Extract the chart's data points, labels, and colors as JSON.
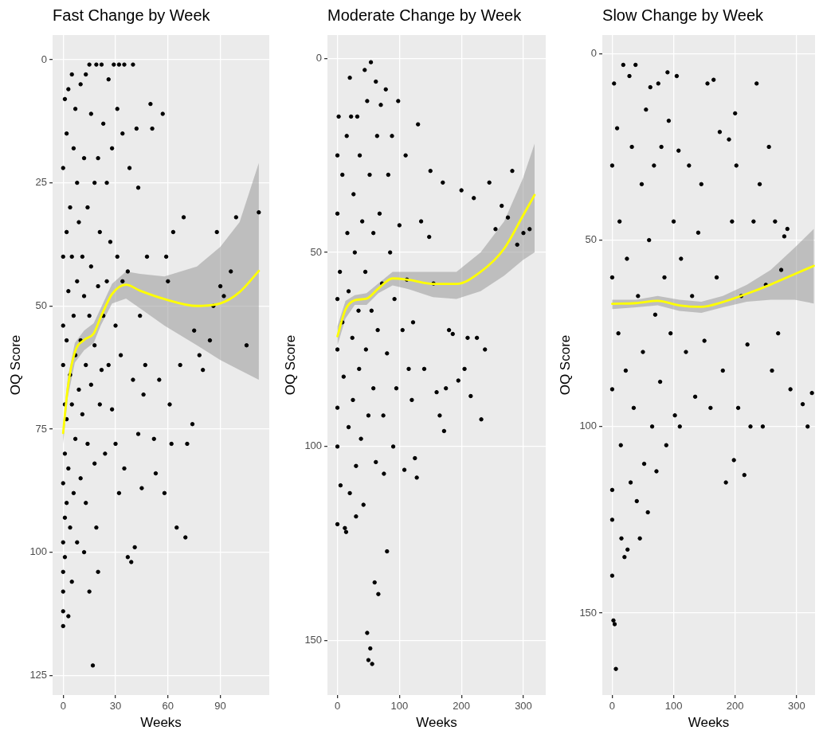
{
  "chart_data": [
    {
      "type": "scatter",
      "title": "Fast Change by Week",
      "xlabel": "Weeks",
      "ylabel": "OQ Score",
      "xlim": [
        -6,
        118
      ],
      "xticks": [
        0,
        30,
        60,
        90
      ],
      "ylim": [
        129,
        -5
      ],
      "yticks": [
        0,
        25,
        50,
        75,
        100,
        125
      ],
      "grid": true,
      "series": [
        {
          "type": "scatter",
          "color": "#000000",
          "x": [
            0,
            0,
            0,
            0,
            0,
            0,
            0,
            0,
            0,
            0,
            1,
            1,
            1,
            1,
            1,
            2,
            2,
            2,
            2,
            2,
            3,
            3,
            3,
            3,
            4,
            4,
            4,
            5,
            5,
            5,
            5,
            6,
            6,
            6,
            7,
            7,
            7,
            8,
            8,
            8,
            9,
            9,
            10,
            10,
            10,
            11,
            11,
            12,
            12,
            12,
            13,
            13,
            13,
            14,
            14,
            15,
            15,
            15,
            16,
            16,
            16,
            17,
            18,
            18,
            18,
            19,
            19,
            20,
            20,
            20,
            21,
            21,
            22,
            22,
            23,
            23,
            24,
            25,
            25,
            26,
            26,
            27,
            28,
            28,
            29,
            30,
            30,
            31,
            31,
            32,
            32,
            33,
            34,
            34,
            35,
            35,
            37,
            37,
            38,
            39,
            40,
            40,
            41,
            42,
            43,
            43,
            44,
            45,
            46,
            47,
            48,
            50,
            51,
            52,
            53,
            55,
            57,
            58,
            59,
            60,
            61,
            62,
            63,
            65,
            67,
            69,
            70,
            71,
            74,
            75,
            78,
            80,
            84,
            86,
            88,
            90,
            92,
            96,
            99,
            105,
            112
          ],
          "values": [
            115,
            112,
            108,
            104,
            98,
            86,
            62,
            54,
            40,
            22,
            8,
            101,
            93,
            80,
            70,
            15,
            35,
            57,
            73,
            90,
            113,
            6,
            47,
            83,
            30,
            64,
            95,
            3,
            40,
            70,
            106,
            18,
            52,
            88,
            10,
            60,
            77,
            25,
            45,
            98,
            33,
            67,
            5,
            57,
            85,
            40,
            72,
            20,
            48,
            100,
            3,
            62,
            90,
            30,
            78,
            1,
            52,
            108,
            11,
            42,
            66,
            123,
            25,
            58,
            82,
            1,
            95,
            20,
            46,
            104,
            35,
            70,
            1,
            63,
            13,
            52,
            80,
            25,
            45,
            4,
            62,
            37,
            71,
            18,
            1,
            54,
            78,
            10,
            40,
            1,
            88,
            60,
            15,
            45,
            1,
            83,
            43,
            101,
            22,
            102,
            1,
            65,
            99,
            14,
            26,
            76,
            52,
            87,
            68,
            62,
            40,
            9,
            14,
            77,
            84,
            65,
            11,
            88,
            40,
            45,
            70,
            78,
            35,
            95,
            62,
            32,
            97,
            78,
            74,
            55,
            60,
            63,
            57,
            50,
            35,
            46,
            48,
            43,
            32,
            58,
            31
          ]
        },
        {
          "type": "line",
          "color": "#ffff00",
          "x": [
            0,
            2.7,
            6.7,
            12,
            17.5,
            21.5,
            28,
            36,
            44,
            58,
            76.6,
            90,
            101,
            112
          ],
          "values": [
            75.8,
            66.5,
            59.4,
            56.9,
            55.6,
            52.3,
            47.6,
            45.7,
            46.9,
            48.6,
            50,
            49.5,
            47.2,
            42.9
          ],
          "lower": [
            74,
            64.5,
            57.5,
            55,
            53.5,
            50.5,
            45.5,
            43,
            43.5,
            44,
            42,
            38,
            33,
            21
          ],
          "upper": [
            78,
            68.5,
            61.5,
            59,
            57.5,
            54,
            49.5,
            48.5,
            50.5,
            54,
            58,
            61,
            63,
            65
          ]
        }
      ]
    },
    {
      "type": "scatter",
      "title": "Moderate Change by Week",
      "xlabel": "Weeks",
      "ylabel": "OQ Score",
      "xlim": [
        -16,
        336
      ],
      "xticks": [
        0,
        100,
        200,
        300
      ],
      "ylim": [
        164,
        -6
      ],
      "yticks": [
        0,
        50,
        100,
        150
      ],
      "grid": true,
      "series": [
        {
          "type": "scatter",
          "color": "#000000",
          "x": [
            0,
            0,
            0,
            0,
            0,
            0,
            0,
            2,
            4,
            5,
            8,
            8,
            10,
            12,
            14,
            15,
            16,
            18,
            18,
            20,
            20,
            22,
            24,
            25,
            26,
            28,
            30,
            30,
            32,
            34,
            35,
            36,
            38,
            40,
            42,
            44,
            45,
            46,
            48,
            48,
            50,
            50,
            52,
            53,
            54,
            55,
            56,
            58,
            58,
            60,
            62,
            62,
            64,
            65,
            66,
            68,
            70,
            72,
            74,
            75,
            78,
            80,
            80,
            82,
            85,
            88,
            90,
            92,
            95,
            98,
            100,
            105,
            108,
            110,
            112,
            115,
            120,
            122,
            125,
            128,
            130,
            135,
            140,
            148,
            150,
            155,
            160,
            165,
            170,
            172,
            175,
            180,
            186,
            195,
            200,
            205,
            210,
            215,
            220,
            225,
            232,
            238,
            245,
            255,
            265,
            275,
            282,
            290,
            300,
            310
          ],
          "values": [
            25,
            40,
            62,
            75,
            90,
            100,
            120,
            15,
            55,
            110,
            30,
            68,
            82,
            121,
            122,
            20,
            45,
            60,
            95,
            5,
            112,
            15,
            72,
            88,
            35,
            50,
            118,
            105,
            15,
            65,
            80,
            25,
            98,
            42,
            115,
            3,
            55,
            75,
            11,
            148,
            92,
            155,
            30,
            152,
            1,
            65,
            156,
            45,
            85,
            135,
            104,
            6,
            20,
            70,
            138,
            40,
            12,
            58,
            92,
            107,
            8,
            127,
            76,
            30,
            50,
            20,
            100,
            62,
            85,
            11,
            43,
            70,
            106,
            25,
            57,
            80,
            88,
            68,
            103,
            108,
            17,
            42,
            80,
            46,
            29,
            58,
            86,
            92,
            32,
            96,
            85,
            70,
            71,
            83,
            34,
            80,
            72,
            87,
            36,
            72,
            93,
            75,
            32,
            44,
            38,
            41,
            29,
            48,
            45,
            44
          ]
        },
        {
          "type": "line",
          "color": "#ffff00",
          "x": [
            0,
            13,
            28,
            47,
            66,
            89,
            116,
            154,
            192,
            231,
            269,
            299,
            318
          ],
          "values": [
            71.6,
            64.7,
            62.3,
            61.9,
            59.3,
            56.7,
            57.1,
            58.1,
            58.1,
            55,
            49,
            40.6,
            35.2
          ],
          "lower": [
            69,
            62.5,
            61,
            60.5,
            58,
            55,
            55,
            55,
            55,
            50,
            42,
            31,
            22
          ],
          "upper": [
            74,
            67,
            63.5,
            63.5,
            60.5,
            58.5,
            59.5,
            61.5,
            62,
            60,
            56,
            52,
            50
          ]
        }
      ]
    },
    {
      "type": "scatter",
      "title": "Slow Change by Week",
      "xlabel": "Weeks",
      "ylabel": "OQ Score",
      "xlim": [
        -16,
        330
      ],
      "xticks": [
        0,
        100,
        200,
        300
      ],
      "ylim": [
        172,
        -5
      ],
      "yticks": [
        0,
        50,
        100,
        150
      ],
      "grid": true,
      "series": [
        {
          "type": "scatter",
          "color": "#000000",
          "x": [
            0,
            0,
            0,
            0,
            0,
            0,
            2,
            4,
            6,
            3,
            8,
            10,
            12,
            14,
            15,
            18,
            20,
            22,
            24,
            25,
            28,
            30,
            32,
            35,
            38,
            40,
            42,
            45,
            48,
            50,
            52,
            55,
            58,
            60,
            62,
            65,
            68,
            70,
            72,
            75,
            78,
            80,
            85,
            88,
            90,
            92,
            95,
            100,
            102,
            105,
            108,
            110,
            112,
            120,
            125,
            130,
            135,
            140,
            145,
            150,
            155,
            160,
            165,
            170,
            175,
            180,
            185,
            190,
            195,
            198,
            200,
            202,
            205,
            210,
            215,
            220,
            225,
            230,
            235,
            240,
            245,
            250,
            255,
            260,
            265,
            270,
            275,
            280,
            285,
            290,
            310,
            318,
            325
          ],
          "values": [
            117,
            125,
            140,
            90,
            60,
            30,
            152,
            153,
            165,
            8,
            20,
            75,
            45,
            105,
            130,
            3,
            135,
            85,
            55,
            133,
            6,
            115,
            25,
            95,
            3,
            120,
            65,
            130,
            35,
            80,
            110,
            15,
            123,
            50,
            9,
            100,
            30,
            70,
            112,
            8,
            88,
            25,
            60,
            105,
            5,
            18,
            75,
            45,
            97,
            6,
            26,
            100,
            55,
            80,
            30,
            65,
            92,
            48,
            35,
            77,
            8,
            95,
            7,
            60,
            21,
            85,
            115,
            23,
            45,
            109,
            16,
            30,
            95,
            65,
            113,
            78,
            100,
            45,
            8,
            35,
            100,
            62,
            25,
            85,
            45,
            75,
            58,
            49,
            47,
            90,
            94,
            100,
            91
          ]
        },
        {
          "type": "line",
          "color": "#ffff00",
          "x": [
            0,
            39,
            74,
            109,
            145,
            180,
            219,
            258,
            297,
            328
          ],
          "values": [
            67.1,
            66.9,
            66.3,
            67.5,
            67.9,
            66.6,
            64.4,
            61.9,
            59.1,
            56.9
          ],
          "lower": [
            66,
            66,
            65,
            66,
            66.5,
            65,
            62,
            58,
            52,
            47
          ],
          "upper": [
            68.5,
            68,
            67.5,
            69,
            69.5,
            68,
            66.5,
            66,
            66,
            67
          ]
        }
      ]
    }
  ]
}
